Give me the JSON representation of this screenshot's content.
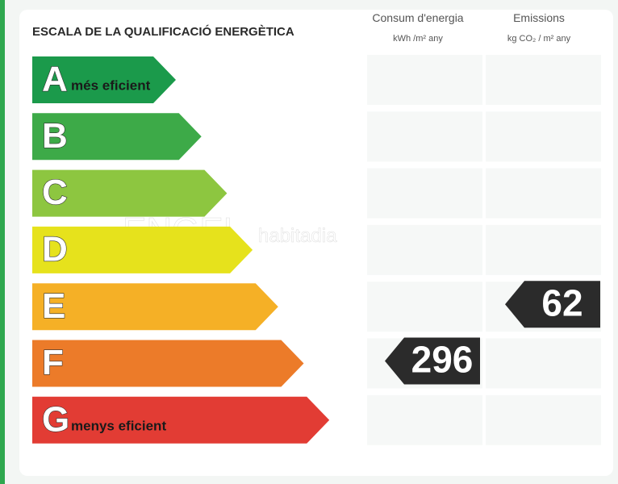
{
  "header": {
    "title": "ESCALA DE LA QUALIFICACIÓ ENERGÈTICA",
    "columns": [
      {
        "title": "Consum d'energia",
        "unit": "kWh /m² any"
      },
      {
        "title": "Emissions",
        "unit": "kg CO₂ / m² any"
      }
    ]
  },
  "scale": [
    {
      "letter": "A",
      "label": "més eficient",
      "color": "#1b9a4b"
    },
    {
      "letter": "B",
      "color": "#3daa48"
    },
    {
      "letter": "C",
      "color": "#8dc640"
    },
    {
      "letter": "D",
      "color": "#e6e21c"
    },
    {
      "letter": "E",
      "color": "#f5b026"
    },
    {
      "letter": "F",
      "color": "#ec7b29"
    },
    {
      "letter": "G",
      "label": "menys eficient",
      "color": "#e23c34"
    }
  ],
  "ratings": [
    {
      "value": 296,
      "class": "F"
    },
    {
      "value": 62,
      "class": "E"
    }
  ],
  "watermark": [
    "ENGEL",
    "habitadia"
  ]
}
